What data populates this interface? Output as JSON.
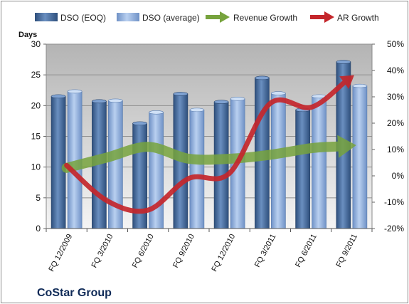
{
  "chart_data": {
    "type": "bar",
    "title": "",
    "company": "CoStar Group",
    "ylabel": "Days",
    "ylim": [
      0,
      30
    ],
    "y_ticks": [
      "0",
      "5",
      "10",
      "15",
      "20",
      "25",
      "30"
    ],
    "y2lim": [
      -20,
      50
    ],
    "y2_ticks": [
      "-20%",
      "-10%",
      "0%",
      "10%",
      "20%",
      "30%",
      "40%",
      "50%"
    ],
    "categories": [
      "FQ 12/2009",
      "FQ 3/2010",
      "FQ 6/2010",
      "FQ 9/2010",
      "FQ 12/2010",
      "FQ 3/2011",
      "FQ 6/2011",
      "FQ 9/2011"
    ],
    "series": [
      {
        "name": "DSO (EOQ)",
        "type": "bar",
        "axis": "left",
        "color": "#4a6f9e",
        "values": [
          21.5,
          20.7,
          17.1,
          21.9,
          20.6,
          24.5,
          19.3,
          27.1
        ]
      },
      {
        "name": "DSO (average)",
        "type": "bar",
        "axis": "left",
        "color": "#8eaede",
        "values": [
          22.3,
          20.8,
          18.9,
          19.3,
          21.1,
          22.0,
          21.5,
          23.2
        ]
      },
      {
        "name": "Revenue Growth",
        "type": "line",
        "axis": "right",
        "color": "#77a33d",
        "values": [
          3,
          7,
          11,
          6.5,
          6.5,
          8,
          10.5,
          11.5
        ]
      },
      {
        "name": "AR Growth",
        "type": "line",
        "axis": "right",
        "color": "#c4262b",
        "values": [
          4,
          -9.5,
          -13,
          -1,
          1,
          27.5,
          26,
          37.5
        ]
      }
    ],
    "grid": true,
    "legend_position": "top"
  }
}
